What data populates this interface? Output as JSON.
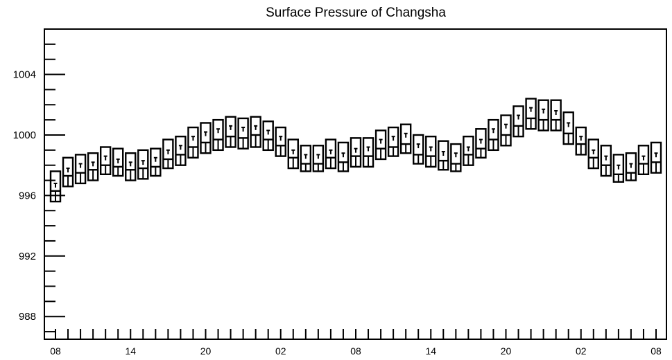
{
  "chart_data": {
    "type": "boxplot",
    "title": "Surface Pressure of Changsha",
    "xlabel": "",
    "ylabel": "",
    "ylim": [
      986.5,
      1007.0
    ],
    "y_ticks": [
      988,
      992,
      996,
      1000,
      1004
    ],
    "x_tick_labels": [
      "08",
      "14",
      "20",
      "02",
      "08",
      "14",
      "20",
      "02",
      "08"
    ],
    "x_hours": [
      8,
      9,
      10,
      11,
      12,
      13,
      14,
      15,
      16,
      17,
      18,
      19,
      20,
      21,
      22,
      23,
      0,
      1,
      2,
      3,
      4,
      5,
      6,
      7,
      8,
      9,
      10,
      11,
      12,
      13,
      14,
      15,
      16,
      17,
      18,
      19,
      20,
      21,
      22,
      23,
      0,
      1,
      2,
      3,
      4,
      5,
      6,
      7,
      8
    ],
    "series": [
      {
        "upper": [
          997.6,
          998.5,
          998.7,
          998.8,
          999.2,
          999.1,
          998.8,
          999.0,
          999.1,
          999.7,
          999.9,
          1000.5,
          1000.8,
          1001.0,
          1001.2,
          1001.1,
          1001.2,
          1000.9,
          1000.5,
          999.7,
          999.3,
          999.3,
          999.7,
          999.5,
          999.8,
          999.8,
          1000.3,
          1000.5,
          1000.7,
          1000.0,
          999.9,
          999.6,
          999.4,
          999.9,
          1000.4,
          1001.0,
          1001.3,
          1001.9,
          1002.4,
          1002.3,
          1002.3,
          1001.5,
          1000.5,
          999.7,
          999.3,
          998.7,
          998.8,
          999.3,
          999.5
        ],
        "whisker_top": [
          996.8,
          997.8,
          998.1,
          998.2,
          998.6,
          998.4,
          998.2,
          998.3,
          998.5,
          999.0,
          999.3,
          999.9,
          1000.2,
          1000.4,
          1000.6,
          1000.5,
          1000.6,
          1000.3,
          999.9,
          999.0,
          998.7,
          998.7,
          999.0,
          998.8,
          999.1,
          999.2,
          999.7,
          999.9,
          1000.1,
          999.4,
          999.2,
          998.9,
          998.8,
          999.2,
          999.7,
          1000.4,
          1000.7,
          1001.3,
          1001.8,
          1001.7,
          1001.6,
          1000.8,
          999.9,
          999.0,
          998.6,
          998.0,
          998.1,
          998.6,
          998.8
        ],
        "median": [
          996.3,
          997.3,
          997.5,
          997.7,
          998.0,
          997.9,
          997.7,
          997.8,
          997.9,
          998.4,
          998.7,
          999.2,
          999.5,
          999.7,
          999.9,
          999.8,
          1000.0,
          999.7,
          999.3,
          998.5,
          998.1,
          998.1,
          998.5,
          998.2,
          998.6,
          998.6,
          999.1,
          999.2,
          999.4,
          998.7,
          998.6,
          998.3,
          998.1,
          998.7,
          999.1,
          999.7,
          1000.0,
          1000.6,
          1001.1,
          1001.0,
          1001.0,
          1000.1,
          999.4,
          998.5,
          998.0,
          997.4,
          997.5,
          998.1,
          998.2
        ],
        "lower": [
          995.6,
          996.6,
          996.8,
          997.0,
          997.4,
          997.3,
          997.0,
          997.1,
          997.3,
          997.8,
          998.0,
          998.5,
          998.8,
          999.0,
          999.2,
          999.1,
          999.2,
          999.0,
          998.6,
          997.8,
          997.6,
          997.6,
          997.8,
          997.6,
          997.9,
          997.9,
          998.4,
          998.6,
          998.8,
          998.1,
          997.9,
          997.7,
          997.6,
          998.0,
          998.5,
          999.0,
          999.3,
          999.9,
          1000.4,
          1000.3,
          1000.3,
          999.4,
          998.7,
          997.8,
          997.3,
          996.9,
          997.0,
          997.4,
          997.5
        ]
      }
    ],
    "grid": false,
    "legend": "none"
  }
}
